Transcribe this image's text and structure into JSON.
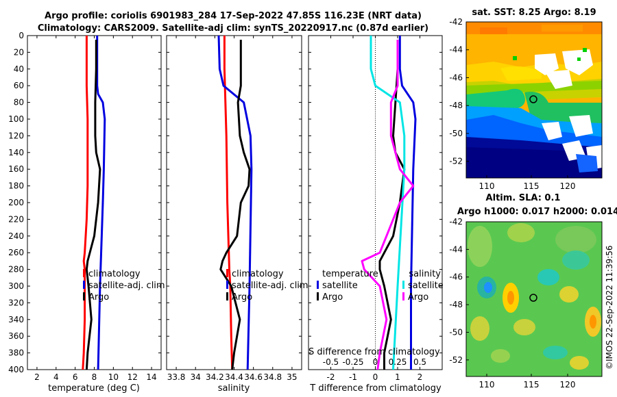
{
  "header": {
    "line1": "Argo profile: coriolis 6901983_284 17-Sep-2022 47.85S 116.23E (NRT data)",
    "line2": "Climatology: CARS2009. Satellite-adj clim: synTS_20220917.nc (0.87d earlier)"
  },
  "colors": {
    "climatology": "#ff0000",
    "satellite": "#0000e0",
    "argo": "#000000",
    "t_sat": "#00e5e5",
    "s_sat": "#00e5e5",
    "s_argo": "#ff00ff",
    "s_blue": "#0000e0"
  },
  "legends": {
    "clim": "climatology",
    "sat": "satellite-adj. clim",
    "argo": "Argo",
    "temperature_head": "temperature",
    "salinity_head": "salinity",
    "satellite": "satellite",
    "sdiff_label": "S difference from climatology"
  },
  "chart_data": [
    {
      "type": "line",
      "id": "temperature",
      "xlabel": "temperature (deg C)",
      "ylabel": "",
      "xlim": [
        1,
        15
      ],
      "ylim": [
        400,
        0
      ],
      "xticks": [
        2,
        4,
        6,
        8,
        10,
        12,
        14
      ],
      "yticks": [
        0,
        20,
        40,
        60,
        80,
        100,
        120,
        140,
        160,
        180,
        200,
        220,
        240,
        260,
        280,
        300,
        320,
        340,
        360,
        380,
        400
      ],
      "series": [
        {
          "name": "climatology",
          "color": "#ff0000",
          "depth": [
            0,
            20,
            60,
            100,
            140,
            180,
            220,
            260,
            270,
            280,
            300,
            340,
            380,
            400
          ],
          "values": [
            7.2,
            7.2,
            7.2,
            7.3,
            7.3,
            7.3,
            7.2,
            7.0,
            6.9,
            7.0,
            7.0,
            7.0,
            6.9,
            6.8
          ]
        },
        {
          "name": "satellite-adj. clim",
          "color": "#0000e0",
          "depth": [
            0,
            20,
            60,
            70,
            80,
            100,
            160,
            200,
            300,
            400
          ],
          "values": [
            8.3,
            8.3,
            8.3,
            8.4,
            8.9,
            9.1,
            9.0,
            8.9,
            8.6,
            8.4
          ]
        },
        {
          "name": "Argo",
          "color": "#000000",
          "depth": [
            5,
            40,
            80,
            120,
            140,
            160,
            180,
            200,
            240,
            270,
            280,
            300,
            340,
            380,
            400
          ],
          "values": [
            8.2,
            8.2,
            8.1,
            8.1,
            8.2,
            8.6,
            8.5,
            8.4,
            8.0,
            7.3,
            7.2,
            7.4,
            7.7,
            7.3,
            7.2
          ]
        }
      ]
    },
    {
      "type": "line",
      "id": "salinity",
      "xlabel": "salinity",
      "xlim": [
        33.7,
        35.1
      ],
      "ylim": [
        400,
        0
      ],
      "xticks": [
        33.8,
        34,
        34.2,
        34.4,
        34.6,
        34.8,
        35
      ],
      "xticklabels": [
        "33.8",
        "34",
        "34.2",
        "34.4",
        "34.6",
        "34.8",
        "35"
      ],
      "series": [
        {
          "name": "climatology",
          "color": "#ff0000",
          "depth": [
            0,
            40,
            80,
            120,
            200,
            280,
            300,
            360,
            400
          ],
          "values": [
            34.3,
            34.3,
            34.31,
            34.32,
            34.33,
            34.35,
            34.36,
            34.37,
            34.38
          ]
        },
        {
          "name": "satellite-adj. clim",
          "color": "#0000e0",
          "depth": [
            0,
            40,
            60,
            80,
            120,
            160,
            300,
            400
          ],
          "values": [
            34.24,
            34.25,
            34.29,
            34.5,
            34.57,
            34.58,
            34.56,
            34.54
          ]
        },
        {
          "name": "Argo",
          "color": "#000000",
          "depth": [
            5,
            60,
            80,
            120,
            140,
            160,
            180,
            200,
            240,
            260,
            270,
            280,
            300,
            340,
            380,
            400
          ],
          "values": [
            34.47,
            34.47,
            34.44,
            34.46,
            34.5,
            34.56,
            34.55,
            34.47,
            34.43,
            34.32,
            34.28,
            34.26,
            34.37,
            34.46,
            34.4,
            34.38
          ]
        }
      ]
    },
    {
      "type": "line",
      "id": "difference",
      "xlabel": "T difference from climatology",
      "xlim": [
        -3,
        3
      ],
      "ylim": [
        400,
        0
      ],
      "xticks": [
        -2,
        -1,
        0,
        1,
        2
      ],
      "xticklabels": [
        "-2",
        "-1",
        "0",
        "1",
        "2"
      ],
      "s_xticklabels": [
        "-0.5",
        "-0.25",
        "0",
        "0.25",
        "0.5"
      ],
      "series": [
        {
          "name": "T satellite",
          "color": "#0000e0",
          "depth": [
            0,
            40,
            60,
            80,
            100,
            160,
            300,
            400
          ],
          "values": [
            1.1,
            1.1,
            1.2,
            1.7,
            1.8,
            1.7,
            1.6,
            1.6
          ]
        },
        {
          "name": "T Argo",
          "color": "#000000",
          "depth": [
            5,
            40,
            80,
            120,
            140,
            160,
            200,
            240,
            270,
            280,
            300,
            340,
            380,
            400
          ],
          "values": [
            1.0,
            1.0,
            0.9,
            0.8,
            0.9,
            1.3,
            1.1,
            0.8,
            0.2,
            0.2,
            0.4,
            0.7,
            0.4,
            0.4
          ]
        },
        {
          "name": "S satellite",
          "color": "#00e5e5",
          "depth": [
            0,
            40,
            60,
            80,
            120,
            160,
            300,
            400
          ],
          "values": [
            -0.2,
            -0.2,
            0.0,
            1.1,
            1.3,
            1.3,
            1.0,
            0.8
          ]
        },
        {
          "name": "S Argo",
          "color": "#ff00ff",
          "depth": [
            5,
            60,
            80,
            120,
            160,
            180,
            200,
            240,
            260,
            270,
            280,
            300,
            340,
            380,
            400
          ],
          "values": [
            1.0,
            1.0,
            0.7,
            0.7,
            1.1,
            1.7,
            1.1,
            0.5,
            0.2,
            -0.6,
            -0.5,
            0.2,
            0.5,
            0.2,
            0.1
          ]
        }
      ]
    }
  ],
  "maps": {
    "sst": {
      "title": "sat. SST: 8.25 Argo: 8.19",
      "xticks": [
        "110",
        "115",
        "120"
      ],
      "yticks": [
        "-42",
        "-44",
        "-46",
        "-48",
        "-50",
        "-52"
      ]
    },
    "sla": {
      "title1": "Altim. SLA: 0.1",
      "title2": "Argo h1000: 0.017 h2000: 0.014",
      "xticks": [
        "110",
        "115",
        "120"
      ],
      "yticks": [
        "-42",
        "-44",
        "-46",
        "-48",
        "-50",
        "-52"
      ]
    }
  },
  "watermark": "©IMOS 22-Sep-2022 11:39:56"
}
